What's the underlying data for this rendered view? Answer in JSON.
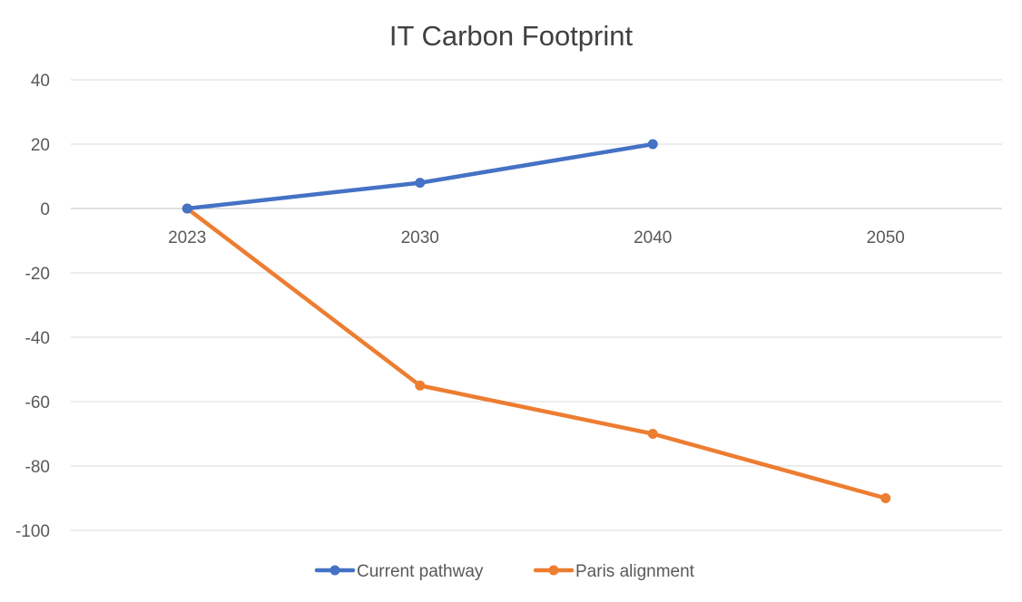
{
  "chart_data": {
    "type": "line",
    "title": "IT Carbon Footprint",
    "categories": [
      "2023",
      "2030",
      "2040",
      "2050"
    ],
    "ylim": [
      -100,
      40
    ],
    "yticks": [
      40,
      20,
      0,
      -20,
      -40,
      -60,
      -80,
      -100
    ],
    "ytick_labels": [
      "40",
      "20",
      "0",
      "-20",
      "-40",
      "-60",
      "-80",
      "-100"
    ],
    "grid": true,
    "legend_position": "bottom",
    "xlabel": "",
    "ylabel": "",
    "series": [
      {
        "name": "Current pathway",
        "color": "#4472C4",
        "values": [
          0,
          8,
          20,
          null
        ]
      },
      {
        "name": "Paris alignment",
        "color": "#ED7D31",
        "values": [
          0,
          -55,
          -70,
          -90
        ]
      }
    ]
  }
}
